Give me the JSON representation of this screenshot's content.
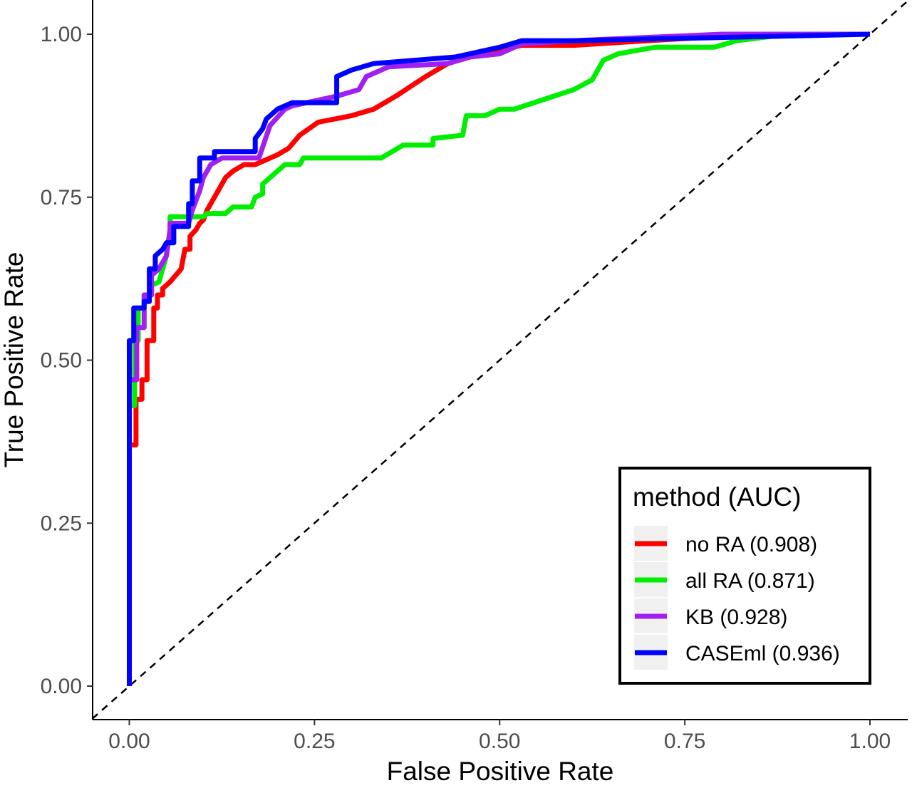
{
  "chart_data": {
    "type": "line",
    "title": "",
    "xlabel": "False Positive Rate",
    "ylabel": "True Positive Rate",
    "xlim": [
      -0.05,
      1.05
    ],
    "ylim": [
      -0.05,
      1.05
    ],
    "x_ticks": [
      "0.00",
      "0.25",
      "0.50",
      "0.75",
      "1.00"
    ],
    "y_ticks": [
      "0.00",
      "0.25",
      "0.50",
      "0.75",
      "1.00"
    ],
    "grid": false,
    "legend": {
      "title": "method (AUC)",
      "position": "bottom-right"
    },
    "reference_line": {
      "style": "dashed",
      "color": "#000000",
      "x": [
        -0.05,
        1.05
      ],
      "y": [
        -0.05,
        1.05
      ]
    },
    "series": [
      {
        "name": "no RA (0.908)",
        "color": "#ff0000",
        "points": [
          [
            0.0,
            0.0
          ],
          [
            0.0,
            0.37
          ],
          [
            0.009,
            0.37
          ],
          [
            0.009,
            0.44
          ],
          [
            0.017,
            0.44
          ],
          [
            0.017,
            0.47
          ],
          [
            0.024,
            0.47
          ],
          [
            0.024,
            0.53
          ],
          [
            0.033,
            0.53
          ],
          [
            0.033,
            0.58
          ],
          [
            0.038,
            0.58
          ],
          [
            0.038,
            0.6
          ],
          [
            0.045,
            0.6
          ],
          [
            0.045,
            0.61
          ],
          [
            0.055,
            0.62
          ],
          [
            0.07,
            0.64
          ],
          [
            0.075,
            0.67
          ],
          [
            0.082,
            0.67
          ],
          [
            0.082,
            0.69
          ],
          [
            0.09,
            0.7
          ],
          [
            0.095,
            0.71
          ],
          [
            0.1,
            0.715
          ],
          [
            0.105,
            0.73
          ],
          [
            0.11,
            0.74
          ],
          [
            0.12,
            0.76
          ],
          [
            0.13,
            0.78
          ],
          [
            0.14,
            0.79
          ],
          [
            0.155,
            0.8
          ],
          [
            0.17,
            0.8
          ],
          [
            0.2,
            0.815
          ],
          [
            0.215,
            0.825
          ],
          [
            0.23,
            0.845
          ],
          [
            0.255,
            0.865
          ],
          [
            0.3,
            0.875
          ],
          [
            0.33,
            0.885
          ],
          [
            0.36,
            0.905
          ],
          [
            0.4,
            0.935
          ],
          [
            0.43,
            0.955
          ],
          [
            0.46,
            0.965
          ],
          [
            0.53,
            0.983
          ],
          [
            0.6,
            0.983
          ],
          [
            0.7,
            0.99
          ],
          [
            0.85,
            1.0
          ],
          [
            1.0,
            1.0
          ]
        ]
      },
      {
        "name": "all RA (0.871)",
        "color": "#00ee00",
        "points": [
          [
            0.0,
            0.0
          ],
          [
            0.0,
            0.43
          ],
          [
            0.007,
            0.43
          ],
          [
            0.007,
            0.53
          ],
          [
            0.012,
            0.53
          ],
          [
            0.012,
            0.58
          ],
          [
            0.02,
            0.58
          ],
          [
            0.02,
            0.6
          ],
          [
            0.03,
            0.6
          ],
          [
            0.03,
            0.615
          ],
          [
            0.04,
            0.62
          ],
          [
            0.045,
            0.64
          ],
          [
            0.05,
            0.66
          ],
          [
            0.055,
            0.7
          ],
          [
            0.055,
            0.72
          ],
          [
            0.1,
            0.72
          ],
          [
            0.105,
            0.725
          ],
          [
            0.13,
            0.725
          ],
          [
            0.14,
            0.735
          ],
          [
            0.165,
            0.735
          ],
          [
            0.17,
            0.75
          ],
          [
            0.18,
            0.755
          ],
          [
            0.18,
            0.77
          ],
          [
            0.19,
            0.78
          ],
          [
            0.21,
            0.8
          ],
          [
            0.23,
            0.8
          ],
          [
            0.235,
            0.81
          ],
          [
            0.34,
            0.81
          ],
          [
            0.37,
            0.83
          ],
          [
            0.41,
            0.83
          ],
          [
            0.41,
            0.84
          ],
          [
            0.45,
            0.845
          ],
          [
            0.455,
            0.875
          ],
          [
            0.48,
            0.875
          ],
          [
            0.5,
            0.885
          ],
          [
            0.52,
            0.885
          ],
          [
            0.56,
            0.9
          ],
          [
            0.6,
            0.915
          ],
          [
            0.625,
            0.93
          ],
          [
            0.64,
            0.96
          ],
          [
            0.66,
            0.97
          ],
          [
            0.7,
            0.978
          ],
          [
            0.71,
            0.98
          ],
          [
            0.79,
            0.98
          ],
          [
            0.82,
            0.99
          ],
          [
            0.89,
            1.0
          ],
          [
            1.0,
            1.0
          ]
        ]
      },
      {
        "name": "KB (0.928)",
        "color": "#a020f0",
        "points": [
          [
            0.0,
            0.0
          ],
          [
            0.0,
            0.47
          ],
          [
            0.01,
            0.47
          ],
          [
            0.01,
            0.55
          ],
          [
            0.02,
            0.55
          ],
          [
            0.02,
            0.6
          ],
          [
            0.03,
            0.6
          ],
          [
            0.03,
            0.63
          ],
          [
            0.04,
            0.64
          ],
          [
            0.05,
            0.66
          ],
          [
            0.055,
            0.7
          ],
          [
            0.055,
            0.71
          ],
          [
            0.08,
            0.71
          ],
          [
            0.085,
            0.73
          ],
          [
            0.095,
            0.76
          ],
          [
            0.1,
            0.78
          ],
          [
            0.11,
            0.8
          ],
          [
            0.125,
            0.81
          ],
          [
            0.175,
            0.81
          ],
          [
            0.19,
            0.86
          ],
          [
            0.21,
            0.885
          ],
          [
            0.22,
            0.89
          ],
          [
            0.28,
            0.905
          ],
          [
            0.31,
            0.915
          ],
          [
            0.32,
            0.935
          ],
          [
            0.35,
            0.95
          ],
          [
            0.43,
            0.955
          ],
          [
            0.46,
            0.965
          ],
          [
            0.5,
            0.97
          ],
          [
            0.53,
            0.985
          ],
          [
            0.6,
            0.99
          ],
          [
            0.8,
            1.0
          ],
          [
            1.0,
            1.0
          ]
        ]
      },
      {
        "name": "CASEml (0.936)",
        "color": "#0000ff",
        "points": [
          [
            0.0,
            0.0
          ],
          [
            0.0,
            0.53
          ],
          [
            0.006,
            0.53
          ],
          [
            0.006,
            0.58
          ],
          [
            0.02,
            0.58
          ],
          [
            0.02,
            0.59
          ],
          [
            0.027,
            0.59
          ],
          [
            0.027,
            0.64
          ],
          [
            0.035,
            0.64
          ],
          [
            0.035,
            0.66
          ],
          [
            0.045,
            0.67
          ],
          [
            0.05,
            0.68
          ],
          [
            0.06,
            0.68
          ],
          [
            0.06,
            0.705
          ],
          [
            0.08,
            0.705
          ],
          [
            0.08,
            0.74
          ],
          [
            0.085,
            0.74
          ],
          [
            0.085,
            0.775
          ],
          [
            0.095,
            0.775
          ],
          [
            0.095,
            0.81
          ],
          [
            0.115,
            0.81
          ],
          [
            0.115,
            0.82
          ],
          [
            0.17,
            0.82
          ],
          [
            0.17,
            0.84
          ],
          [
            0.18,
            0.855
          ],
          [
            0.185,
            0.87
          ],
          [
            0.2,
            0.885
          ],
          [
            0.22,
            0.895
          ],
          [
            0.28,
            0.895
          ],
          [
            0.28,
            0.91
          ],
          [
            0.28,
            0.935
          ],
          [
            0.3,
            0.945
          ],
          [
            0.33,
            0.955
          ],
          [
            0.44,
            0.965
          ],
          [
            0.5,
            0.98
          ],
          [
            0.53,
            0.99
          ],
          [
            0.6,
            0.99
          ],
          [
            0.8,
            0.995
          ],
          [
            1.0,
            1.0
          ]
        ]
      }
    ]
  }
}
